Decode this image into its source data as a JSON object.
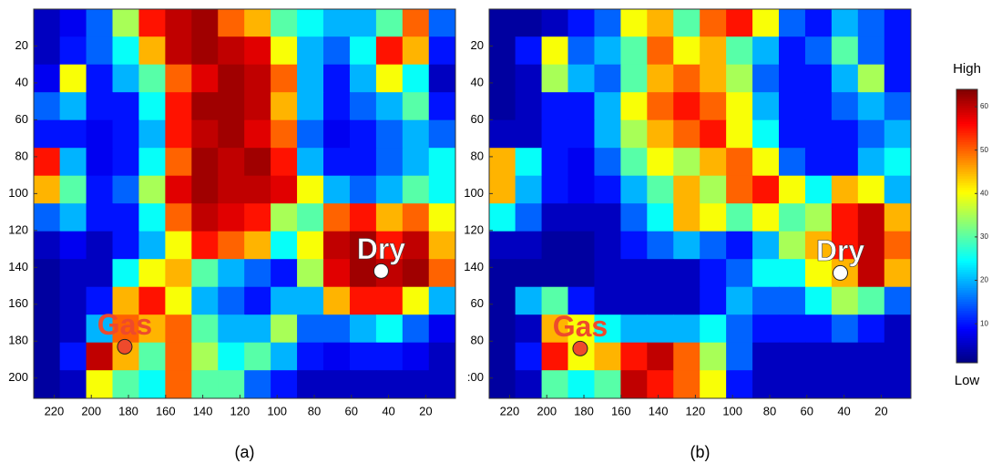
{
  "chart_data": [
    {
      "type": "heatmap",
      "caption": "(a)",
      "colormap": "jet",
      "xlim": [
        231,
        4
      ],
      "ylim": [
        0,
        211
      ],
      "xticks": [
        220,
        200,
        180,
        160,
        140,
        120,
        100,
        80,
        60,
        40,
        20
      ],
      "yticks": [
        20,
        40,
        60,
        80,
        100,
        120,
        140,
        160,
        180,
        200
      ],
      "z": [
        [
          5,
          8,
          15,
          35,
          55,
          60,
          62,
          50,
          45,
          30,
          25,
          20,
          20,
          30,
          50,
          15
        ],
        [
          5,
          10,
          15,
          25,
          45,
          60,
          62,
          60,
          58,
          40,
          20,
          15,
          25,
          55,
          45,
          10
        ],
        [
          8,
          40,
          10,
          20,
          30,
          50,
          58,
          62,
          60,
          50,
          20,
          10,
          20,
          40,
          25,
          5
        ],
        [
          15,
          20,
          10,
          10,
          25,
          55,
          62,
          62,
          60,
          45,
          20,
          10,
          15,
          20,
          30,
          10
        ],
        [
          10,
          10,
          8,
          10,
          20,
          55,
          60,
          62,
          58,
          50,
          15,
          8,
          10,
          15,
          20,
          15
        ],
        [
          55,
          20,
          8,
          10,
          25,
          50,
          62,
          60,
          62,
          55,
          20,
          10,
          10,
          15,
          20,
          25
        ],
        [
          45,
          30,
          10,
          15,
          35,
          58,
          62,
          60,
          60,
          58,
          40,
          20,
          15,
          20,
          30,
          25
        ],
        [
          15,
          20,
          10,
          10,
          25,
          50,
          60,
          58,
          55,
          35,
          30,
          50,
          55,
          45,
          50,
          40
        ],
        [
          5,
          8,
          5,
          10,
          20,
          40,
          55,
          50,
          45,
          25,
          40,
          60,
          62,
          55,
          60,
          45
        ],
        [
          3,
          5,
          5,
          25,
          40,
          45,
          30,
          20,
          15,
          10,
          35,
          58,
          62,
          60,
          62,
          50
        ],
        [
          3,
          5,
          10,
          45,
          55,
          40,
          20,
          15,
          10,
          20,
          20,
          45,
          55,
          55,
          40,
          20
        ],
        [
          3,
          5,
          20,
          50,
          45,
          50,
          30,
          20,
          20,
          35,
          15,
          15,
          20,
          25,
          15,
          8
        ],
        [
          3,
          10,
          60,
          45,
          30,
          50,
          35,
          25,
          30,
          20,
          10,
          8,
          10,
          10,
          8,
          5
        ],
        [
          3,
          5,
          40,
          30,
          25,
          50,
          30,
          30,
          15,
          10,
          5,
          5,
          5,
          5,
          5,
          5
        ]
      ],
      "points": [
        {
          "label": "Dry",
          "x": 44,
          "y": 142,
          "color": "#ffffff"
        },
        {
          "label": "Gas",
          "x": 182,
          "y": 183,
          "color": "#ee4a2c"
        }
      ]
    },
    {
      "type": "heatmap",
      "caption": "(b)",
      "colormap": "jet",
      "xlim": [
        231,
        4
      ],
      "ylim": [
        0,
        211
      ],
      "xticks": [
        220,
        200,
        180,
        160,
        140,
        120,
        100,
        80,
        60,
        40,
        20
      ],
      "yticks": [
        20,
        40,
        60,
        80,
        100,
        120,
        140,
        {
          "value": 160,
          "label": "60"
        },
        {
          "value": 180,
          "label": "80"
        },
        {
          "value": 200,
          "label": ":00"
        }
      ],
      "z": [
        [
          3,
          3,
          5,
          10,
          15,
          40,
          45,
          30,
          50,
          55,
          40,
          15,
          10,
          20,
          15,
          10
        ],
        [
          3,
          10,
          40,
          15,
          20,
          30,
          50,
          40,
          45,
          30,
          20,
          10,
          15,
          30,
          15,
          10
        ],
        [
          3,
          5,
          35,
          20,
          15,
          30,
          45,
          50,
          45,
          35,
          15,
          10,
          10,
          20,
          35,
          10
        ],
        [
          3,
          5,
          10,
          10,
          20,
          40,
          50,
          55,
          50,
          40,
          20,
          10,
          10,
          15,
          20,
          15
        ],
        [
          5,
          5,
          10,
          10,
          20,
          35,
          45,
          50,
          55,
          40,
          25,
          10,
          10,
          10,
          15,
          20
        ],
        [
          45,
          25,
          10,
          8,
          15,
          30,
          40,
          35,
          45,
          50,
          40,
          15,
          10,
          10,
          20,
          25
        ],
        [
          45,
          20,
          10,
          8,
          10,
          20,
          30,
          45,
          35,
          50,
          55,
          40,
          25,
          45,
          40,
          20
        ],
        [
          25,
          15,
          5,
          5,
          5,
          15,
          25,
          45,
          40,
          30,
          40,
          30,
          35,
          55,
          60,
          45
        ],
        [
          5,
          5,
          3,
          3,
          5,
          10,
          15,
          20,
          15,
          10,
          20,
          35,
          45,
          55,
          60,
          50
        ],
        [
          3,
          3,
          3,
          3,
          5,
          5,
          5,
          5,
          10,
          15,
          25,
          25,
          40,
          45,
          60,
          45
        ],
        [
          3,
          20,
          30,
          10,
          5,
          5,
          5,
          5,
          10,
          20,
          15,
          15,
          25,
          35,
          30,
          15
        ],
        [
          3,
          5,
          45,
          40,
          25,
          20,
          20,
          20,
          25,
          15,
          10,
          10,
          10,
          15,
          10,
          5
        ],
        [
          3,
          10,
          55,
          40,
          45,
          55,
          60,
          50,
          35,
          15,
          5,
          5,
          5,
          5,
          5,
          5
        ],
        [
          3,
          5,
          30,
          25,
          30,
          60,
          55,
          50,
          40,
          10,
          5,
          5,
          5,
          5,
          5,
          5
        ]
      ],
      "points": [
        {
          "label": "Dry",
          "x": 42,
          "y": 143,
          "color": "#ffffff"
        },
        {
          "label": "Gas",
          "x": 182,
          "y": 184,
          "color": "#ee4a2c"
        }
      ]
    }
  ],
  "colorbar": {
    "clim": [
      1,
      64
    ],
    "ticks": [
      10,
      20,
      30,
      40,
      50,
      60
    ],
    "high_label": "High",
    "low_label": "Low"
  }
}
